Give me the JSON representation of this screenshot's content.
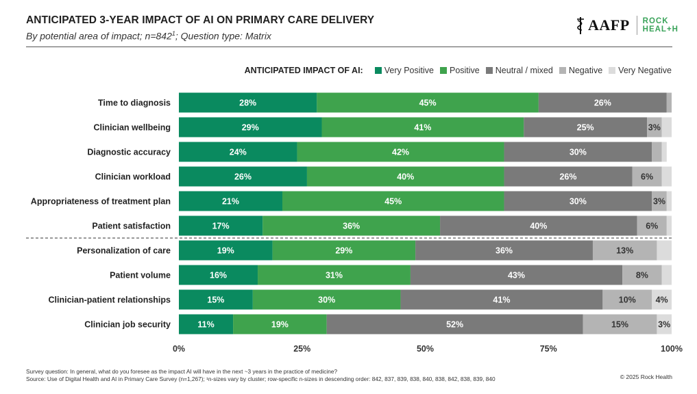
{
  "header": {
    "title": "ANTICIPATED 3-YEAR IMPACT OF AI ON PRIMARY CARE DELIVERY",
    "subtitle_pre": "By potential area of impact; n=842",
    "subtitle_sup": "1",
    "subtitle_post": "; Question type: Matrix"
  },
  "logos": {
    "aafp": "AAFP",
    "rock_line1": "ROCK",
    "rock_line2": "HEAL+H"
  },
  "legend": {
    "title": "ANTICIPATED IMPACT OF AI:",
    "items": [
      {
        "label": "Very Positive",
        "color": "#0a8a5f"
      },
      {
        "label": "Positive",
        "color": "#3fa34d"
      },
      {
        "label": "Neutral / mixed",
        "color": "#7a7a7a"
      },
      {
        "label": "Negative",
        "color": "#b4b4b4"
      },
      {
        "label": "Very Negative",
        "color": "#dcdcdc"
      }
    ]
  },
  "chart_data": {
    "type": "bar",
    "orientation": "horizontal",
    "stacked": true,
    "categories": [
      "Time to diagnosis",
      "Clinician wellbeing",
      "Diagnostic accuracy",
      "Clinician workload",
      "Appropriateness of treatment plan",
      "Patient satisfaction",
      "Personalization of care",
      "Patient volume",
      "Clinician-patient relationships",
      "Clinician job security"
    ],
    "series": [
      {
        "name": "Very Positive",
        "color": "#0a8a5f",
        "values": [
          28,
          29,
          24,
          26,
          21,
          17,
          19,
          16,
          15,
          11
        ]
      },
      {
        "name": "Positive",
        "color": "#3fa34d",
        "values": [
          45,
          41,
          42,
          40,
          45,
          36,
          29,
          31,
          30,
          19
        ]
      },
      {
        "name": "Neutral / mixed",
        "color": "#7a7a7a",
        "values": [
          26,
          25,
          30,
          26,
          30,
          40,
          36,
          43,
          41,
          52
        ]
      },
      {
        "name": "Negative",
        "color": "#b4b4b4",
        "values": [
          1,
          3,
          2,
          6,
          3,
          6,
          13,
          8,
          10,
          15
        ]
      },
      {
        "name": "Very Negative",
        "color": "#dcdcdc",
        "values": [
          1,
          2,
          1,
          2,
          1,
          1,
          3,
          2,
          4,
          3
        ]
      }
    ],
    "value_labels": [
      [
        "28%",
        "45%",
        "26%",
        "",
        ""
      ],
      [
        "29%",
        "41%",
        "25%",
        "3%",
        ""
      ],
      [
        "24%",
        "42%",
        "30%",
        "",
        ""
      ],
      [
        "26%",
        "40%",
        "26%",
        "6%",
        ""
      ],
      [
        "21%",
        "45%",
        "30%",
        "3%",
        ""
      ],
      [
        "17%",
        "36%",
        "40%",
        "6%",
        ""
      ],
      [
        "19%",
        "29%",
        "36%",
        "13%",
        ""
      ],
      [
        "16%",
        "31%",
        "43%",
        "8%",
        ""
      ],
      [
        "15%",
        "30%",
        "41%",
        "10%",
        "4%"
      ],
      [
        "11%",
        "19%",
        "52%",
        "15%",
        "3%"
      ]
    ],
    "xlim": [
      0,
      100
    ],
    "xticks": [
      "0%",
      "25%",
      "50%",
      "75%",
      "100%"
    ],
    "divider_after_index": 5,
    "legend_position": "top-right"
  },
  "footer": {
    "question": "Survey question: In general, what do you foresee as the impact AI will have in the next ~3 years in the practice of medicine?",
    "source": "Source: Use of Digital Health and AI in Primary Care Survey (n=1,267); ¹n-sizes vary by cluster; row-specific n-sizes in descending order: 842, 837, 839, 838, 840, 838, 842, 838, 839, 840",
    "copyright": "© 2025 Rock Health"
  }
}
